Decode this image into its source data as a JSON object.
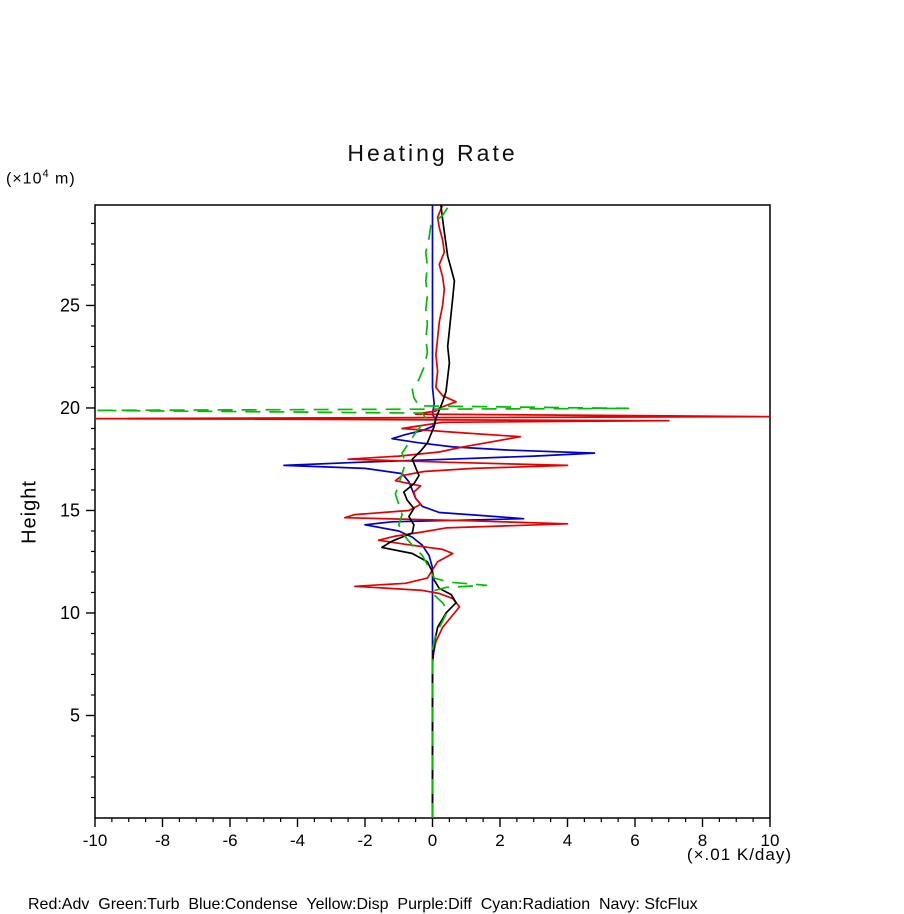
{
  "page": {
    "background": "#ffffff"
  },
  "chart_data": {
    "type": "line",
    "title": "Heating Rate",
    "ylabel": "Height",
    "y_unit": {
      "prefix": "(×10",
      "sup": "4",
      "suffix": " m)"
    },
    "xlabel": "(×.01 K/day)",
    "xlim": [
      -10,
      10
    ],
    "ylim": [
      0,
      29.9
    ],
    "x_major_ticks": [
      -10,
      -8,
      -6,
      -4,
      -2,
      0,
      2,
      4,
      6,
      8,
      10
    ],
    "x_minor_step": 0.5,
    "y_major_ticks": [
      5,
      10,
      15,
      20,
      25
    ],
    "y_minor_step": 1,
    "grid": false,
    "legend_position": "bottom-caption",
    "axis_color": "#000000",
    "caption": "Red:Adv  Green:Turb  Blue:Condense  Yellow:Disp  Purple:Diff  Cyan:Radiation  Navy: SfcFlux",
    "series": [
      {
        "name": "condense-blue",
        "label": "Condense",
        "color": "#0000d0",
        "dash": null,
        "points": [
          [
            0,
            0
          ],
          [
            0,
            12.2
          ],
          [
            -0.1,
            12.8
          ],
          [
            -0.3,
            13.3
          ],
          [
            -0.6,
            13.7
          ],
          [
            -1.0,
            14.0
          ],
          [
            -2.0,
            14.3
          ],
          [
            -1.2,
            14.45
          ],
          [
            2.7,
            14.6
          ],
          [
            1.5,
            14.75
          ],
          [
            0.2,
            14.9
          ],
          [
            -0.3,
            15.2
          ],
          [
            -0.5,
            15.6
          ],
          [
            -0.6,
            16.0
          ],
          [
            -0.7,
            16.4
          ],
          [
            -0.9,
            16.8
          ],
          [
            -2.0,
            17.05
          ],
          [
            -4.4,
            17.2
          ],
          [
            -2.2,
            17.35
          ],
          [
            0.5,
            17.5
          ],
          [
            3.0,
            17.65
          ],
          [
            4.8,
            17.8
          ],
          [
            2.2,
            17.95
          ],
          [
            0.6,
            18.1
          ],
          [
            -0.4,
            18.3
          ],
          [
            -1.2,
            18.5
          ],
          [
            -0.8,
            18.7
          ],
          [
            -0.3,
            18.9
          ],
          [
            0,
            19.1
          ],
          [
            0.1,
            19.4
          ],
          [
            0,
            19.7
          ],
          [
            0.05,
            20.2
          ],
          [
            0,
            21
          ],
          [
            0,
            29.9
          ]
        ]
      },
      {
        "name": "adv-red",
        "label": "Adv",
        "color": "#e60000",
        "dash": null,
        "points": [
          [
            0,
            0
          ],
          [
            0,
            7.8
          ],
          [
            0.1,
            8.6
          ],
          [
            0.3,
            9.3
          ],
          [
            0.6,
            9.9
          ],
          [
            0.8,
            10.3
          ],
          [
            0.6,
            10.7
          ],
          [
            0.2,
            10.95
          ],
          [
            -0.3,
            11.1
          ],
          [
            -2.3,
            11.3
          ],
          [
            -0.8,
            11.45
          ],
          [
            -0.15,
            11.7
          ],
          [
            0,
            12.1
          ],
          [
            0.15,
            12.5
          ],
          [
            0.6,
            12.9
          ],
          [
            0.3,
            13.1
          ],
          [
            -0.8,
            13.35
          ],
          [
            -1.6,
            13.55
          ],
          [
            -1.1,
            13.75
          ],
          [
            -0.3,
            13.95
          ],
          [
            0.4,
            14.15
          ],
          [
            4.0,
            14.35
          ],
          [
            1.0,
            14.5
          ],
          [
            -2.6,
            14.65
          ],
          [
            -2.3,
            14.8
          ],
          [
            -0.7,
            15.0
          ],
          [
            -0.35,
            15.3
          ],
          [
            -0.5,
            15.6
          ],
          [
            -0.55,
            15.9
          ],
          [
            -0.35,
            16.2
          ],
          [
            -1.1,
            16.45
          ],
          [
            -0.9,
            16.7
          ],
          [
            -0.25,
            16.9
          ],
          [
            1.2,
            17.05
          ],
          [
            4.0,
            17.2
          ],
          [
            0.5,
            17.35
          ],
          [
            -2.5,
            17.5
          ],
          [
            -1.0,
            17.65
          ],
          [
            0.2,
            17.85
          ],
          [
            0.9,
            18.1
          ],
          [
            2.6,
            18.6
          ],
          [
            0.8,
            18.8
          ],
          [
            -0.9,
            19.0
          ],
          [
            -0.3,
            19.15
          ],
          [
            0.3,
            19.3
          ],
          [
            7.0,
            19.38
          ],
          [
            -10,
            19.48
          ],
          [
            10,
            19.58
          ],
          [
            -0.5,
            19.7
          ],
          [
            0.1,
            19.85
          ],
          [
            0.2,
            20.0
          ],
          [
            0.7,
            20.3
          ],
          [
            0.3,
            20.6
          ],
          [
            0.1,
            21.0
          ],
          [
            0.15,
            21.8
          ],
          [
            0.1,
            22.6
          ],
          [
            0.15,
            23.4
          ],
          [
            0.2,
            24.2
          ],
          [
            0.3,
            25.0
          ],
          [
            0.35,
            25.8
          ],
          [
            0.3,
            26.4
          ],
          [
            0.2,
            27.0
          ],
          [
            0.35,
            27.6
          ],
          [
            0.3,
            28.2
          ],
          [
            0.2,
            28.8
          ],
          [
            0.15,
            29.3
          ],
          [
            0.3,
            29.9
          ]
        ]
      },
      {
        "name": "black-line",
        "label": "",
        "color": "#000000",
        "dash": null,
        "points": [
          [
            0,
            0
          ],
          [
            0,
            7.5
          ],
          [
            0.05,
            8.5
          ],
          [
            0.15,
            9.3
          ],
          [
            0.4,
            10.0
          ],
          [
            0.7,
            10.5
          ],
          [
            0.55,
            10.9
          ],
          [
            0.2,
            11.2
          ],
          [
            0.05,
            11.6
          ],
          [
            0,
            12.0
          ],
          [
            -0.15,
            12.5
          ],
          [
            -0.6,
            12.9
          ],
          [
            -1.5,
            13.2
          ],
          [
            -1.2,
            13.5
          ],
          [
            -0.6,
            13.9
          ],
          [
            -0.55,
            14.3
          ],
          [
            -0.7,
            14.7
          ],
          [
            -0.55,
            15.1
          ],
          [
            -0.75,
            15.5
          ],
          [
            -0.85,
            15.9
          ],
          [
            -0.55,
            16.3
          ],
          [
            -0.4,
            16.7
          ],
          [
            -0.5,
            17.1
          ],
          [
            -0.6,
            17.5
          ],
          [
            -0.35,
            17.9
          ],
          [
            -0.15,
            18.3
          ],
          [
            -0.05,
            18.7
          ],
          [
            0.05,
            19.1
          ],
          [
            0.1,
            19.5
          ],
          [
            0.2,
            19.9
          ],
          [
            0.3,
            20.3
          ],
          [
            0.4,
            20.8
          ],
          [
            0.45,
            21.5
          ],
          [
            0.5,
            22.2
          ],
          [
            0.45,
            23.0
          ],
          [
            0.5,
            23.8
          ],
          [
            0.55,
            24.6
          ],
          [
            0.6,
            25.4
          ],
          [
            0.65,
            26.2
          ],
          [
            0.55,
            26.8
          ],
          [
            0.45,
            27.4
          ],
          [
            0.4,
            28.0
          ],
          [
            0.35,
            28.6
          ],
          [
            0.3,
            29.2
          ],
          [
            0.25,
            29.9
          ]
        ]
      },
      {
        "name": "turb-green",
        "label": "Turb",
        "color": "#00bd00",
        "dash": "15,9",
        "points": [
          [
            0,
            0
          ],
          [
            0,
            8.2
          ],
          [
            0.1,
            9.0
          ],
          [
            0.3,
            9.6
          ],
          [
            0.45,
            10.1
          ],
          [
            0.3,
            10.5
          ],
          [
            0.1,
            10.8
          ],
          [
            -0.05,
            11.05
          ],
          [
            0.4,
            11.25
          ],
          [
            1.6,
            11.35
          ],
          [
            0.5,
            11.5
          ],
          [
            0.05,
            11.7
          ],
          [
            -0.1,
            12.2
          ],
          [
            -0.3,
            12.8
          ],
          [
            -0.6,
            13.3
          ],
          [
            -0.85,
            13.8
          ],
          [
            -1.0,
            14.3
          ],
          [
            -0.9,
            14.8
          ],
          [
            -1.0,
            15.3
          ],
          [
            -1.1,
            15.8
          ],
          [
            -1.0,
            16.3
          ],
          [
            -0.9,
            16.8
          ],
          [
            -0.8,
            17.3
          ],
          [
            -0.9,
            17.8
          ],
          [
            -0.7,
            18.3
          ],
          [
            -0.5,
            18.8
          ],
          [
            -0.3,
            19.2
          ],
          [
            -0.2,
            19.5
          ],
          [
            -0.3,
            19.75
          ],
          [
            -10,
            19.88
          ],
          [
            5.8,
            19.98
          ],
          [
            -0.4,
            20.1
          ],
          [
            -0.55,
            20.5
          ],
          [
            -0.6,
            20.9
          ],
          [
            -0.4,
            21.4
          ],
          [
            -0.25,
            22.0
          ],
          [
            -0.15,
            22.7
          ],
          [
            -0.2,
            23.4
          ],
          [
            -0.15,
            24.1
          ],
          [
            -0.2,
            24.8
          ],
          [
            -0.15,
            25.5
          ],
          [
            -0.2,
            26.2
          ],
          [
            -0.15,
            26.9
          ],
          [
            -0.2,
            27.6
          ],
          [
            -0.1,
            28.3
          ],
          [
            -0.05,
            28.9
          ],
          [
            0.3,
            29.4
          ],
          [
            0.5,
            29.9
          ]
        ]
      }
    ]
  }
}
